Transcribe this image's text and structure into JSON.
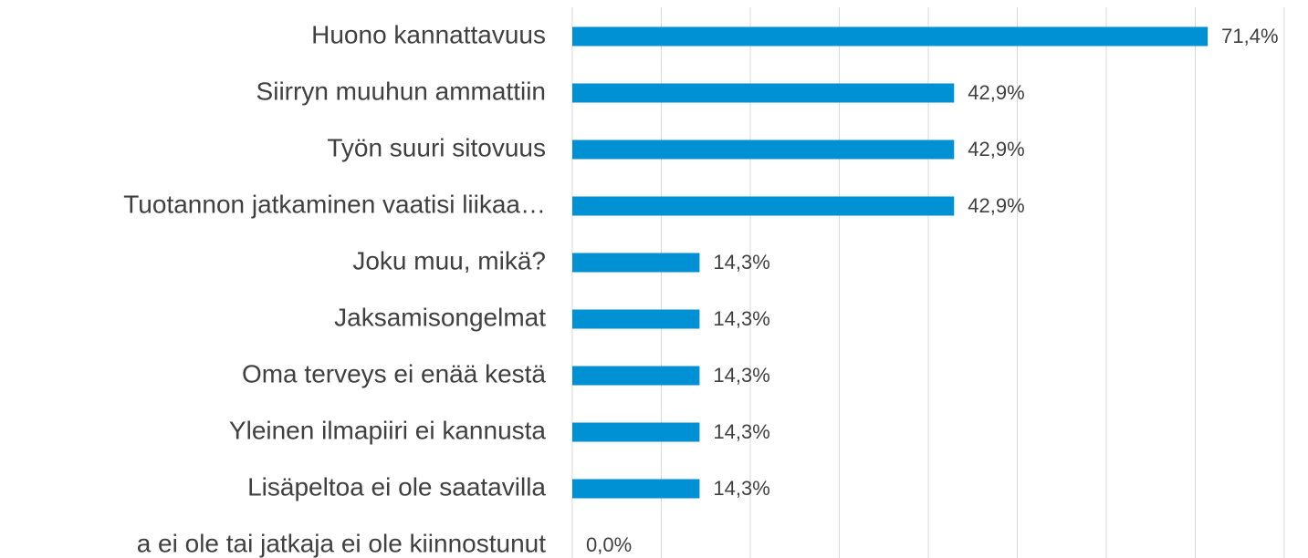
{
  "chart_data": {
    "type": "hbar",
    "categories": [
      "Huono kannattavuus",
      "Siirryn muuhun ammattiin",
      "Työn suuri sitovuus",
      "Tuotannon jatkaminen vaatisi liikaa…",
      "Joku muu, mikä?",
      "Jaksamisongelmat",
      "Oma terveys ei enää kestä",
      "Yleinen ilmapiiri ei kannusta",
      "Lisäpeltoa ei ole saatavilla",
      "a ei ole tai jatkaja ei ole kiinnostunut"
    ],
    "values": [
      71.4,
      42.9,
      42.9,
      42.9,
      14.3,
      14.3,
      14.3,
      14.3,
      14.3,
      0.0
    ],
    "value_labels": [
      "71,4%",
      "42,9%",
      "42,9%",
      "42,9%",
      "14,3%",
      "14,3%",
      "14,3%",
      "14,3%",
      "14,3%",
      "0,0%"
    ],
    "color": "#0091d5",
    "xlim": [
      0,
      80
    ],
    "xticks": [
      0,
      10,
      20,
      30,
      40,
      50,
      60,
      70,
      80
    ],
    "grid": true
  }
}
